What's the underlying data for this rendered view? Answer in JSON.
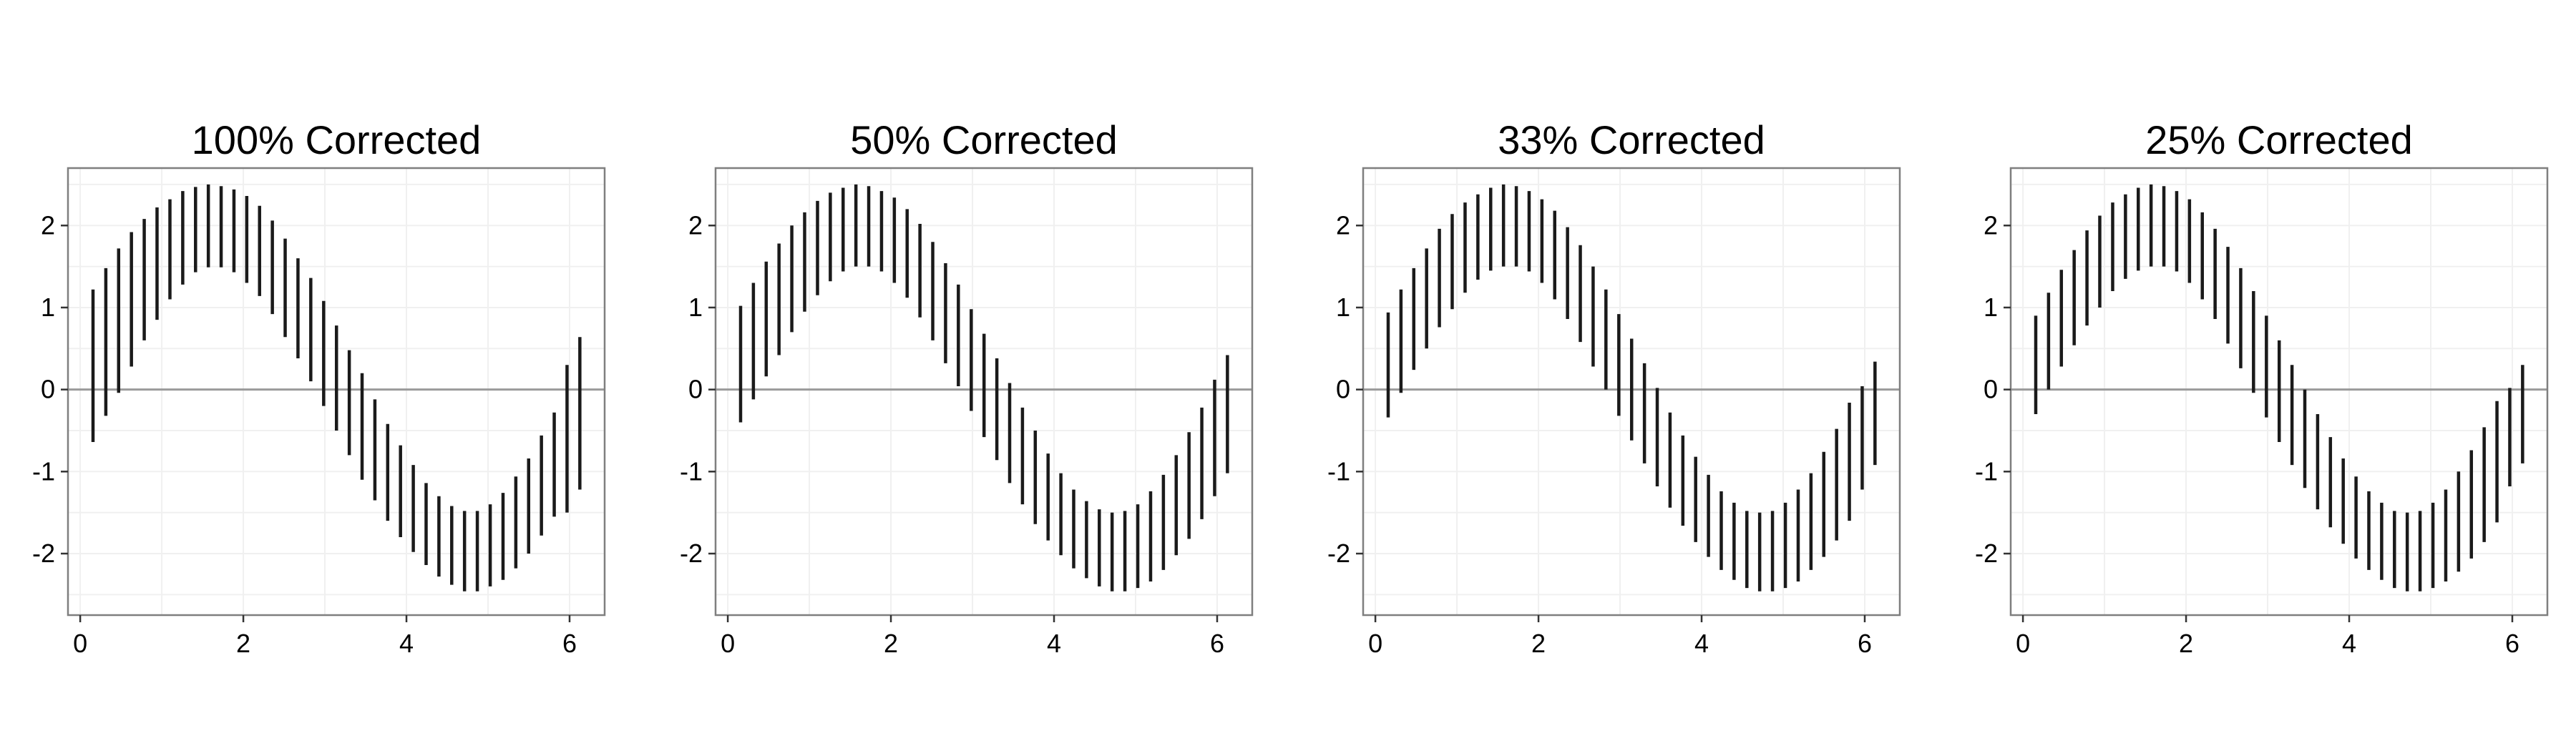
{
  "chart_data": [
    {
      "type": "errorbar",
      "title": "100% Corrected",
      "xlim": [
        -0.15,
        6.43
      ],
      "ylim": [
        -2.75,
        2.7
      ],
      "x_ticks": [
        0,
        2,
        4,
        6
      ],
      "x_tick_labels": [
        "0",
        "2",
        "4",
        "6"
      ],
      "y_ticks": [
        -2,
        -1,
        0,
        1,
        2
      ],
      "y_tick_labels": [
        "-2",
        "-1",
        "0",
        "1",
        "2"
      ],
      "grid": true,
      "reference_line_y": 0,
      "x": [
        0.157,
        0.314,
        0.471,
        0.628,
        0.785,
        0.942,
        1.1,
        1.257,
        1.414,
        1.571,
        1.728,
        1.885,
        2.042,
        2.199,
        2.356,
        2.513,
        2.67,
        2.827,
        2.985,
        3.142,
        3.299,
        3.456,
        3.613,
        3.77,
        3.927,
        4.084,
        4.241,
        4.398,
        4.555,
        4.712,
        4.869,
        5.027,
        5.184,
        5.341,
        5.498,
        5.655,
        5.812,
        5.969,
        6.126
      ],
      "ymin": [
        -0.64,
        -0.32,
        -0.04,
        0.28,
        0.6,
        0.85,
        1.1,
        1.28,
        1.43,
        1.49,
        1.49,
        1.43,
        1.3,
        1.14,
        0.92,
        0.64,
        0.38,
        0.1,
        -0.2,
        -0.5,
        -0.8,
        -1.1,
        -1.35,
        -1.6,
        -1.8,
        -1.98,
        -2.14,
        -2.28,
        -2.38,
        -2.46,
        -2.46,
        -2.4,
        -2.32,
        -2.18,
        -2.0,
        -1.78,
        -1.55,
        -1.5,
        -1.22
      ],
      "ymax": [
        1.22,
        1.48,
        1.72,
        1.92,
        2.08,
        2.22,
        2.32,
        2.42,
        2.47,
        2.5,
        2.48,
        2.44,
        2.36,
        2.24,
        2.06,
        1.84,
        1.6,
        1.36,
        1.08,
        0.78,
        0.48,
        0.2,
        -0.12,
        -0.42,
        -0.68,
        -0.92,
        -1.14,
        -1.3,
        -1.42,
        -1.48,
        -1.48,
        -1.4,
        -1.26,
        -1.06,
        -0.84,
        -0.56,
        -0.28,
        0.3,
        0.64
      ]
    },
    {
      "type": "errorbar",
      "title": "50% Corrected",
      "xlim": [
        -0.15,
        6.43
      ],
      "ylim": [
        -2.75,
        2.7
      ],
      "x_ticks": [
        0,
        2,
        4,
        6
      ],
      "x_tick_labels": [
        "0",
        "2",
        "4",
        "6"
      ],
      "y_ticks": [
        -2,
        -1,
        0,
        1,
        2
      ],
      "y_tick_labels": [
        "-2",
        "-1",
        "0",
        "1",
        "2"
      ],
      "grid": true,
      "reference_line_y": 0,
      "x": [
        0.157,
        0.314,
        0.471,
        0.628,
        0.785,
        0.942,
        1.1,
        1.257,
        1.414,
        1.571,
        1.728,
        1.885,
        2.042,
        2.199,
        2.356,
        2.513,
        2.67,
        2.827,
        2.985,
        3.142,
        3.299,
        3.456,
        3.613,
        3.77,
        3.927,
        4.084,
        4.241,
        4.398,
        4.555,
        4.712,
        4.869,
        5.027,
        5.184,
        5.341,
        5.498,
        5.655,
        5.812,
        5.969,
        6.126
      ],
      "ymin": [
        -0.4,
        -0.12,
        0.16,
        0.42,
        0.7,
        0.95,
        1.15,
        1.32,
        1.44,
        1.5,
        1.5,
        1.44,
        1.3,
        1.12,
        0.88,
        0.6,
        0.32,
        0.04,
        -0.26,
        -0.58,
        -0.86,
        -1.14,
        -1.4,
        -1.64,
        -1.84,
        -2.02,
        -2.18,
        -2.3,
        -2.4,
        -2.46,
        -2.46,
        -2.42,
        -2.34,
        -2.2,
        -2.02,
        -1.82,
        -1.58,
        -1.3,
        -1.02
      ],
      "ymax": [
        1.02,
        1.3,
        1.56,
        1.78,
        2.0,
        2.16,
        2.3,
        2.4,
        2.46,
        2.5,
        2.48,
        2.42,
        2.34,
        2.2,
        2.02,
        1.8,
        1.54,
        1.28,
        0.98,
        0.68,
        0.38,
        0.08,
        -0.22,
        -0.5,
        -0.78,
        -1.02,
        -1.22,
        -1.36,
        -1.46,
        -1.5,
        -1.48,
        -1.4,
        -1.24,
        -1.04,
        -0.8,
        -0.52,
        -0.22,
        0.12,
        0.42
      ]
    },
    {
      "type": "errorbar",
      "title": "33% Corrected",
      "xlim": [
        -0.15,
        6.43
      ],
      "ylim": [
        -2.75,
        2.7
      ],
      "x_ticks": [
        0,
        2,
        4,
        6
      ],
      "x_tick_labels": [
        "0",
        "2",
        "4",
        "6"
      ],
      "y_ticks": [
        -2,
        -1,
        0,
        1,
        2
      ],
      "y_tick_labels": [
        "-2",
        "-1",
        "0",
        "1",
        "2"
      ],
      "grid": true,
      "reference_line_y": 0,
      "x": [
        0.157,
        0.314,
        0.471,
        0.628,
        0.785,
        0.942,
        1.1,
        1.257,
        1.414,
        1.571,
        1.728,
        1.885,
        2.042,
        2.199,
        2.356,
        2.513,
        2.67,
        2.827,
        2.985,
        3.142,
        3.299,
        3.456,
        3.613,
        3.77,
        3.927,
        4.084,
        4.241,
        4.398,
        4.555,
        4.712,
        4.869,
        5.027,
        5.184,
        5.341,
        5.498,
        5.655,
        5.812,
        5.969,
        6.126
      ],
      "ymin": [
        -0.34,
        -0.04,
        0.24,
        0.5,
        0.76,
        0.98,
        1.18,
        1.34,
        1.45,
        1.5,
        1.5,
        1.44,
        1.3,
        1.1,
        0.86,
        0.58,
        0.28,
        0.0,
        -0.32,
        -0.62,
        -0.9,
        -1.18,
        -1.44,
        -1.66,
        -1.86,
        -2.04,
        -2.2,
        -2.32,
        -2.42,
        -2.46,
        -2.46,
        -2.42,
        -2.34,
        -2.2,
        -2.04,
        -1.84,
        -1.6,
        -1.22,
        -0.92
      ],
      "ymax": [
        0.94,
        1.22,
        1.48,
        1.72,
        1.96,
        2.14,
        2.28,
        2.38,
        2.46,
        2.5,
        2.48,
        2.42,
        2.32,
        2.18,
        1.98,
        1.76,
        1.5,
        1.22,
        0.92,
        0.62,
        0.32,
        0.02,
        -0.28,
        -0.56,
        -0.82,
        -1.04,
        -1.24,
        -1.38,
        -1.48,
        -1.5,
        -1.48,
        -1.38,
        -1.22,
        -1.02,
        -0.76,
        -0.48,
        -0.16,
        0.04,
        0.34
      ]
    },
    {
      "type": "errorbar",
      "title": "25% Corrected",
      "xlim": [
        -0.15,
        6.43
      ],
      "ylim": [
        -2.75,
        2.7
      ],
      "x_ticks": [
        0,
        2,
        4,
        6
      ],
      "x_tick_labels": [
        "0",
        "2",
        "4",
        "6"
      ],
      "y_ticks": [
        -2,
        -1,
        0,
        1,
        2
      ],
      "y_tick_labels": [
        "-2",
        "-1",
        "0",
        "1",
        "2"
      ],
      "grid": true,
      "reference_line_y": 0,
      "x": [
        0.157,
        0.314,
        0.471,
        0.628,
        0.785,
        0.942,
        1.1,
        1.257,
        1.414,
        1.571,
        1.728,
        1.885,
        2.042,
        2.199,
        2.356,
        2.513,
        2.67,
        2.827,
        2.985,
        3.142,
        3.299,
        3.456,
        3.613,
        3.77,
        3.927,
        4.084,
        4.241,
        4.398,
        4.555,
        4.712,
        4.869,
        5.027,
        5.184,
        5.341,
        5.498,
        5.655,
        5.812,
        5.969,
        6.126
      ],
      "ymin": [
        -0.3,
        0.0,
        0.28,
        0.54,
        0.78,
        1.0,
        1.2,
        1.35,
        1.45,
        1.5,
        1.5,
        1.44,
        1.3,
        1.1,
        0.86,
        0.56,
        0.26,
        -0.04,
        -0.34,
        -0.64,
        -0.92,
        -1.2,
        -1.46,
        -1.68,
        -1.88,
        -2.06,
        -2.2,
        -2.32,
        -2.42,
        -2.46,
        -2.46,
        -2.42,
        -2.34,
        -2.22,
        -2.06,
        -1.86,
        -1.62,
        -1.18,
        -0.9
      ],
      "ymax": [
        0.9,
        1.18,
        1.46,
        1.7,
        1.94,
        2.12,
        2.28,
        2.38,
        2.46,
        2.5,
        2.48,
        2.42,
        2.32,
        2.16,
        1.96,
        1.74,
        1.48,
        1.2,
        0.9,
        0.6,
        0.3,
        0.0,
        -0.3,
        -0.58,
        -0.84,
        -1.06,
        -1.24,
        -1.38,
        -1.48,
        -1.5,
        -1.48,
        -1.38,
        -1.22,
        -1.0,
        -0.74,
        -0.46,
        -0.14,
        0.02,
        0.3
      ]
    }
  ],
  "colors": {
    "bar": "#1a1a1a",
    "panel_border": "#7f7f7f",
    "grid": "#f0f0f0",
    "reference_line": "#9a9a9a",
    "tick": "#333333"
  }
}
